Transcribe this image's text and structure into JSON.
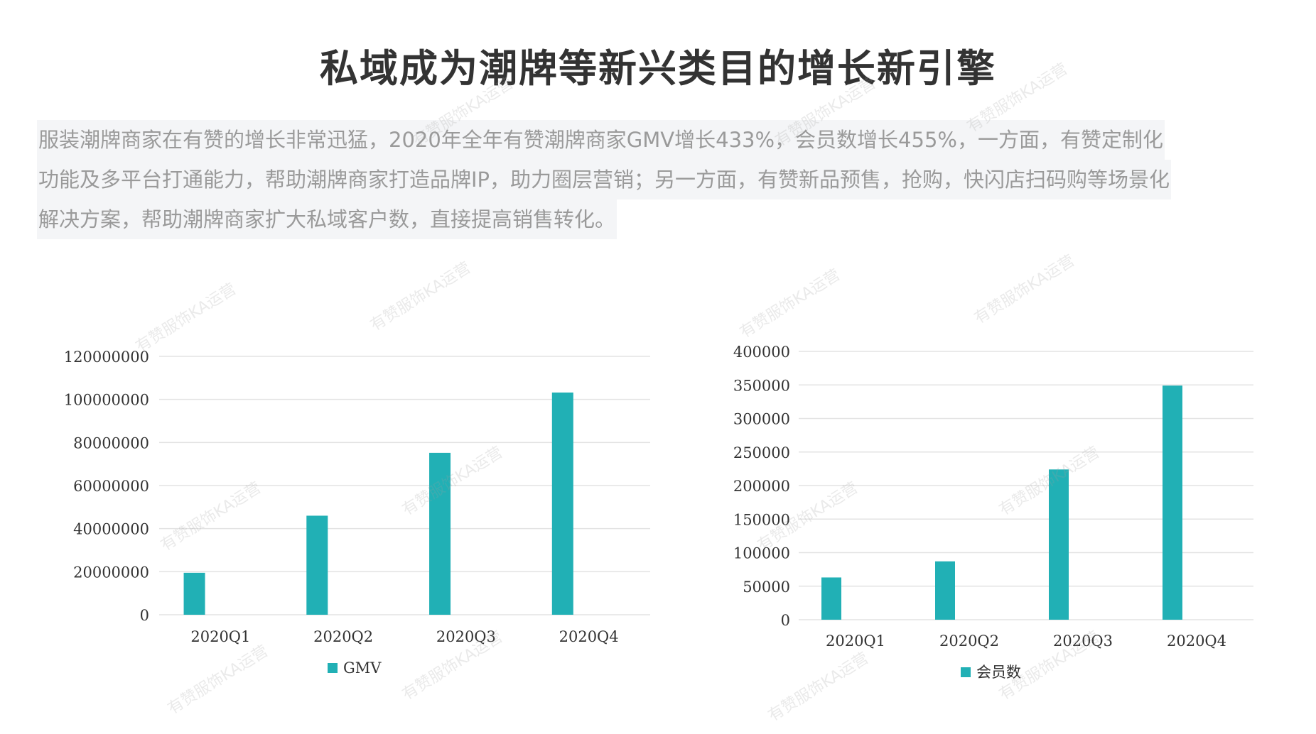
{
  "title": "私域成为潮牌等新兴类目的增长新引擎",
  "paragraph": {
    "lines": [
      "服装潮牌商家在有赞的增长非常迅猛，2020年全年有赞潮牌商家GMV增长433%，会员数增长455%，一方面，有赞定制化",
      "功能及多平台打通能力，帮助潮牌商家打造品牌IP，助力圈层营销；另一方面，有赞新品预售，抢购，快闪店扫码购等场景化",
      "解决方案，帮助潮牌商家扩大私域客户数，直接提高销售转化。"
    ]
  },
  "watermark": "有赞服饰KA运营",
  "colors": {
    "bar": "#21b0b5",
    "grid": "#e3e3e3",
    "axis_text": "#333333"
  },
  "chart_data": [
    {
      "type": "bar",
      "title": "",
      "categories": [
        "2020Q1",
        "2020Q2",
        "2020Q3",
        "2020Q4"
      ],
      "series": [
        {
          "name": "GMV",
          "values": [
            19500000,
            46000000,
            75200000,
            103200000
          ]
        }
      ],
      "yticks": [
        "0",
        "20000000",
        "40000000",
        "60000000",
        "80000000",
        "100000000",
        "120000000"
      ],
      "ylim": [
        0,
        120000000
      ],
      "grid": true,
      "legend": "bottom"
    },
    {
      "type": "bar",
      "title": "",
      "categories": [
        "2020Q1",
        "2020Q2",
        "2020Q3",
        "2020Q4"
      ],
      "series": [
        {
          "name": "会员数",
          "values": [
            63000,
            87000,
            224000,
            349000
          ]
        }
      ],
      "yticks": [
        "0",
        "50000",
        "100000",
        "150000",
        "200000",
        "250000",
        "300000",
        "350000",
        "400000"
      ],
      "ylim": [
        0,
        400000
      ],
      "grid": true,
      "legend": "bottom"
    }
  ]
}
